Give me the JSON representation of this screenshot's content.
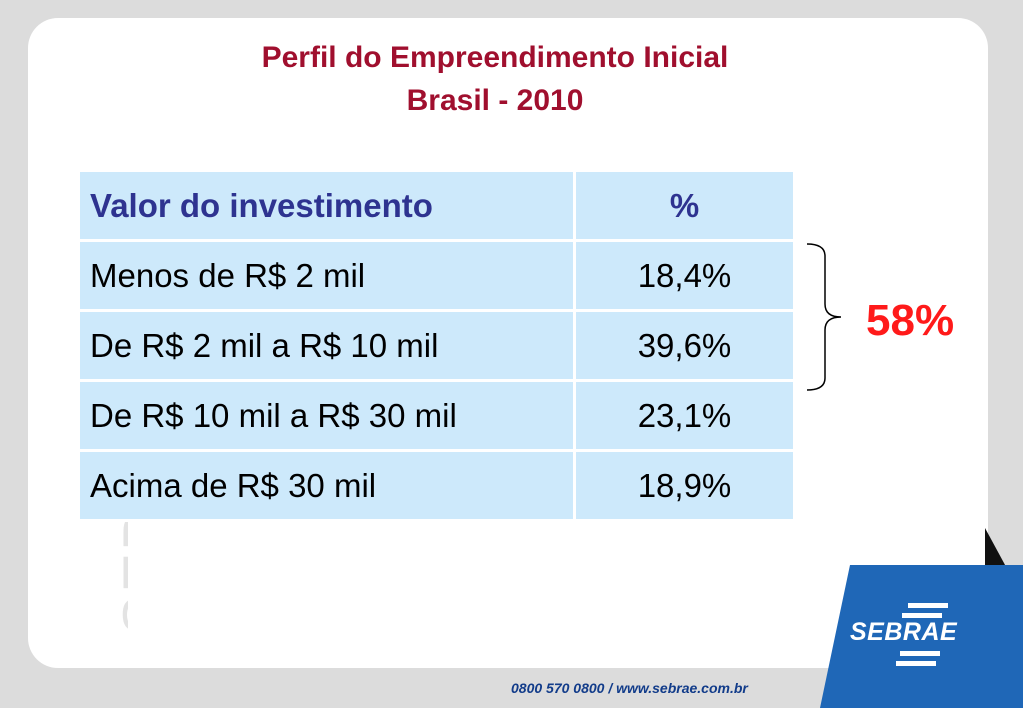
{
  "slide": {
    "title_line1": "Perfil do Empreendimento Inicial",
    "title_line2": "Brasil - 2010",
    "watermark": "SEBRAE"
  },
  "table": {
    "headers": [
      "Valor do investimento",
      "%"
    ],
    "rows": [
      {
        "label": "Menos de R$ 2 mil",
        "value": "18,4%"
      },
      {
        "label": "De R$ 2 mil a R$ 10 mil",
        "value": "39,6%"
      },
      {
        "label": "De R$ 10 mil a R$ 30 mil",
        "value": "23,1%"
      },
      {
        "label": "Acima de R$ 30 mil",
        "value": "18,9%"
      }
    ]
  },
  "annotation": {
    "total": "58%"
  },
  "branding": {
    "logo_text": "SEBRAE",
    "footer": "0800 570 0800   /   www.sebrae.com.br"
  },
  "colors": {
    "title": "#a00f2e",
    "header_text": "#2e3390",
    "cell_background": "#cde9fb",
    "highlight": "#ff1a1a",
    "logo_blue": "#1f67b7"
  }
}
